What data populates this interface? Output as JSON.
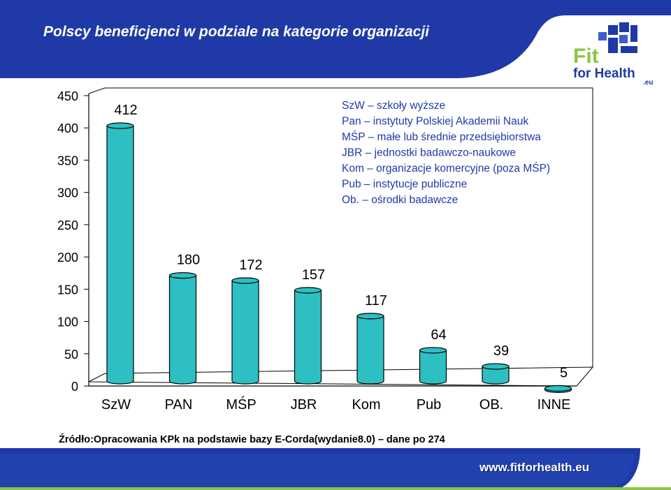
{
  "slide": {
    "title": "Polscy beneficjenci w podziale na kategorie organizacji",
    "source": "Źródło:Opracowania KPk na podstawie bazy E-Corda(wydanie8.0) – dane po 274",
    "website": "www.fitforhealth.eu",
    "logo": {
      "line1": "Fit",
      "line2": "for Health",
      "suffix": ".eu"
    },
    "colors": {
      "header_blue": "#1f3aa6",
      "bar_fill": "#2ebfc2",
      "text_blue": "#1f3aa6",
      "logo_green": "#8cc63f",
      "footer_green": "#8cc63f"
    }
  },
  "chart_data": {
    "type": "bar",
    "categories": [
      "SzW",
      "PAN",
      "MŚP",
      "JBR",
      "Kom",
      "Pub",
      "OB.",
      "INNE"
    ],
    "values": [
      412,
      180,
      172,
      157,
      117,
      64,
      39,
      5
    ],
    "ylim": [
      0,
      450
    ],
    "yticks": [
      0,
      50,
      100,
      150,
      200,
      250,
      300,
      350,
      400,
      450
    ],
    "grid": false,
    "legend_position": "top-right",
    "legend_text": [
      "SzW – szkoły wyższe",
      "Pan – instytuty Polskiej Akademii Nauk",
      "MŚP – małe lub średnie przedsiębiorstwa",
      "JBR – jednostki badawczo-naukowe",
      "Kom – organizacje komercyjne (poza MŚP)",
      "Pub – instytucje publiczne",
      "Ob. – ośrodki badawcze"
    ]
  }
}
